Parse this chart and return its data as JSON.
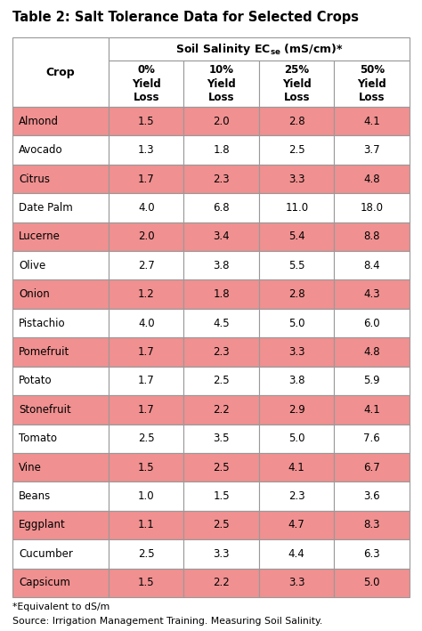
{
  "title": "Table 2: Salt Tolerance Data for Selected Crops",
  "rows": [
    [
      "Almond",
      "1.5",
      "2.0",
      "2.8",
      "4.1"
    ],
    [
      "Avocado",
      "1.3",
      "1.8",
      "2.5",
      "3.7"
    ],
    [
      "Citrus",
      "1.7",
      "2.3",
      "3.3",
      "4.8"
    ],
    [
      "Date Palm",
      "4.0",
      "6.8",
      "11.0",
      "18.0"
    ],
    [
      "Lucerne",
      "2.0",
      "3.4",
      "5.4",
      "8.8"
    ],
    [
      "Olive",
      "2.7",
      "3.8",
      "5.5",
      "8.4"
    ],
    [
      "Onion",
      "1.2",
      "1.8",
      "2.8",
      "4.3"
    ],
    [
      "Pistachio",
      "4.0",
      "4.5",
      "5.0",
      "6.0"
    ],
    [
      "Pomefruit",
      "1.7",
      "2.3",
      "3.3",
      "4.8"
    ],
    [
      "Potato",
      "1.7",
      "2.5",
      "3.8",
      "5.9"
    ],
    [
      "Stonefruit",
      "1.7",
      "2.2",
      "2.9",
      "4.1"
    ],
    [
      "Tomato",
      "2.5",
      "3.5",
      "5.0",
      "7.6"
    ],
    [
      "Vine",
      "1.5",
      "2.5",
      "4.1",
      "6.7"
    ],
    [
      "Beans",
      "1.0",
      "1.5",
      "2.3",
      "3.6"
    ],
    [
      "Eggplant",
      "1.1",
      "2.5",
      "4.7",
      "8.3"
    ],
    [
      "Cucumber",
      "2.5",
      "3.3",
      "4.4",
      "6.3"
    ],
    [
      "Capsicum",
      "1.5",
      "2.2",
      "3.3",
      "5.0"
    ]
  ],
  "highlighted_rows": [
    0,
    2,
    4,
    6,
    8,
    10,
    12,
    14,
    16
  ],
  "highlight_color": "#F09090",
  "white_color": "#FFFFFF",
  "header_bg": "#FFFFFF",
  "border_color": "#999999",
  "title_color": "#000000",
  "footnote1": "*Equivalent to dS/m",
  "footnote2": "Source: Irrigation Management Training. Measuring Soil Salinity.",
  "fig_width": 4.74,
  "fig_height": 7.09,
  "dpi": 100
}
